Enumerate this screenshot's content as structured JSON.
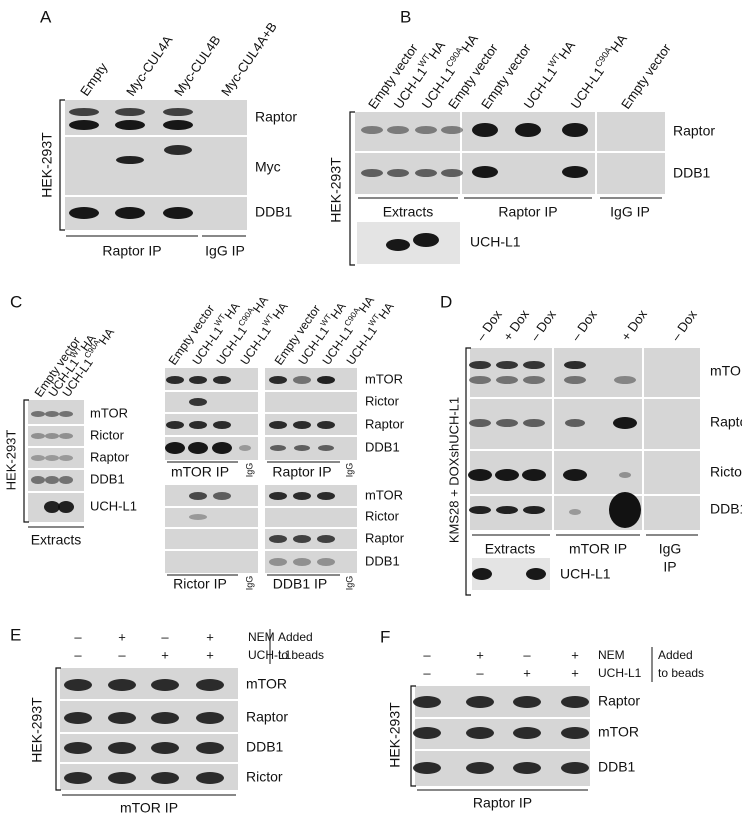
{
  "A": {
    "label": "A",
    "lanes": [
      "Empty",
      "Myc-CUL4A",
      "Myc-CUL4B",
      "Myc-CUL4A+B"
    ],
    "rows": [
      "Raptor",
      "Myc",
      "DDB1"
    ],
    "cell_line": "HEK-293T",
    "groups": [
      "Raptor IP",
      "IgG IP"
    ]
  },
  "B": {
    "label": "B",
    "lanes": [
      "Empty vector",
      {
        "base": "UCH-L1",
        "sup": "WT",
        "suffix": "HA"
      },
      {
        "base": "UCH-L1",
        "sup": "C90A",
        "suffix": "HA"
      },
      "Empty vector",
      "Empty vector",
      {
        "base": "UCH-L1",
        "sup": "WT",
        "suffix": "HA"
      },
      {
        "base": "UCH-L1",
        "sup": "C90A",
        "suffix": "HA"
      },
      "Empty vector"
    ],
    "rows": [
      "Raptor",
      "DDB1"
    ],
    "cell_line": "HEK-293T",
    "groups": [
      "Extracts",
      "Raptor IP",
      "IgG IP"
    ],
    "extra_row": "UCH-L1"
  },
  "C": {
    "label": "C",
    "extract_lanes": [
      "Empty vector",
      {
        "base": "UCH-L1",
        "sup": "WT",
        "suffix": "HA"
      },
      {
        "base": "UCH-L1",
        "sup": "C90A",
        "suffix": "HA"
      }
    ],
    "extract_rows": [
      "mTOR",
      "Rictor",
      "Raptor",
      "DDB1",
      "UCH-L1"
    ],
    "cell_line": "HEK-293T",
    "extract_group": "Extracts",
    "ip_lanes_left": [
      "Empty vector",
      {
        "base": "UCH-L1",
        "sup": "WT",
        "suffix": "HA"
      },
      {
        "base": "UCH-L1",
        "sup": "C90A",
        "suffix": "HA"
      },
      {
        "base": "UCH-L1",
        "sup": "WT",
        "suffix": "HA"
      }
    ],
    "ip_lanes_right": [
      "Empty vector",
      {
        "base": "UCH-L1",
        "sup": "WT",
        "suffix": "HA"
      },
      {
        "base": "UCH-L1",
        "sup": "C90A",
        "suffix": "HA"
      },
      {
        "base": "UCH-L1",
        "sup": "WT",
        "suffix": "HA"
      }
    ],
    "ip_rows_top": [
      "mTOR",
      "Rictor",
      "Raptor",
      "DDB1"
    ],
    "ip_rows_bottom": [
      "mTOR",
      "Rictor",
      "Raptor",
      "DDB1"
    ],
    "ip_groups": [
      "mTOR IP",
      "Raptor IP",
      "Rictor IP",
      "DDB1 IP"
    ],
    "igg_labels": [
      "IgG",
      "IgG",
      "IgG",
      "IgG"
    ]
  },
  "D": {
    "label": "D",
    "lanes": [
      "– Dox",
      "+ Dox",
      "– Dox",
      "– Dox",
      "+ Dox",
      "– Dox"
    ],
    "rows": [
      "mTOR",
      "Raptor",
      "Rictor",
      "DDB1"
    ],
    "cell_line": "KMS28 + DOXshUCH-L1",
    "groups": [
      "Extracts",
      "mTOR IP"
    ],
    "igg_group": [
      "IgG",
      "IP"
    ],
    "extra_row": "UCH-L1"
  },
  "E": {
    "label": "E",
    "conditions": [
      {
        "name": "NEM",
        "signs": [
          "–",
          "+",
          "–",
          "+"
        ]
      },
      {
        "name": "UCH-L1",
        "signs": [
          "–",
          "–",
          "+",
          "+"
        ]
      }
    ],
    "note": [
      "Added",
      "to beads"
    ],
    "rows": [
      "mTOR",
      "Raptor",
      "DDB1",
      "Rictor"
    ],
    "cell_line": "HEK-293T",
    "group": "mTOR IP"
  },
  "F": {
    "label": "F",
    "conditions": [
      {
        "name": "NEM",
        "signs": [
          "–",
          "+",
          "–",
          "+"
        ]
      },
      {
        "name": "UCH-L1",
        "signs": [
          "–",
          "–",
          "+",
          "+"
        ]
      }
    ],
    "note": [
      "Added",
      "to beads"
    ],
    "rows": [
      "Raptor",
      "mTOR",
      "DDB1"
    ],
    "cell_line": "HEK-293T",
    "group": "Raptor IP"
  }
}
